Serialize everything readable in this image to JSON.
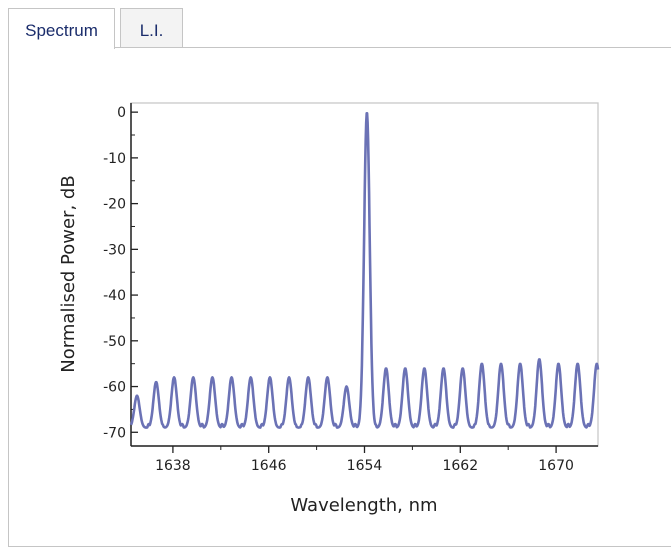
{
  "tabs": [
    {
      "label": "Spectrum",
      "active": true
    },
    {
      "label": "L.I.",
      "active": false
    }
  ],
  "chart_data": {
    "type": "line",
    "title": "",
    "xlabel": "Wavelength, nm",
    "ylabel": "Normalised Power, dB",
    "xlim": [
      1634.5,
      1673.5
    ],
    "ylim": [
      -73,
      2
    ],
    "xticks": [
      1638,
      1646,
      1654,
      1662,
      1670
    ],
    "yticks": [
      0,
      -10,
      -20,
      -30,
      -40,
      -50,
      -60,
      -70
    ],
    "grid": false,
    "series_color": "#6b72b5",
    "peak": {
      "x": 1654.2,
      "y": 0
    },
    "side_modes": [
      {
        "x": 1635.0,
        "y": -62
      },
      {
        "x": 1636.6,
        "y": -59
      },
      {
        "x": 1638.1,
        "y": -58
      },
      {
        "x": 1639.7,
        "y": -58
      },
      {
        "x": 1641.3,
        "y": -58
      },
      {
        "x": 1642.9,
        "y": -58
      },
      {
        "x": 1644.5,
        "y": -58
      },
      {
        "x": 1646.1,
        "y": -58
      },
      {
        "x": 1647.7,
        "y": -58
      },
      {
        "x": 1649.3,
        "y": -58
      },
      {
        "x": 1650.9,
        "y": -58
      },
      {
        "x": 1652.5,
        "y": -60
      },
      {
        "x": 1655.8,
        "y": -56
      },
      {
        "x": 1657.4,
        "y": -56
      },
      {
        "x": 1659.0,
        "y": -56
      },
      {
        "x": 1660.6,
        "y": -56
      },
      {
        "x": 1662.2,
        "y": -56
      },
      {
        "x": 1663.8,
        "y": -55
      },
      {
        "x": 1665.4,
        "y": -55
      },
      {
        "x": 1667.0,
        "y": -55
      },
      {
        "x": 1668.6,
        "y": -54
      },
      {
        "x": 1670.2,
        "y": -55
      },
      {
        "x": 1671.8,
        "y": -55
      },
      {
        "x": 1673.4,
        "y": -55
      }
    ],
    "floor_level": -69
  }
}
